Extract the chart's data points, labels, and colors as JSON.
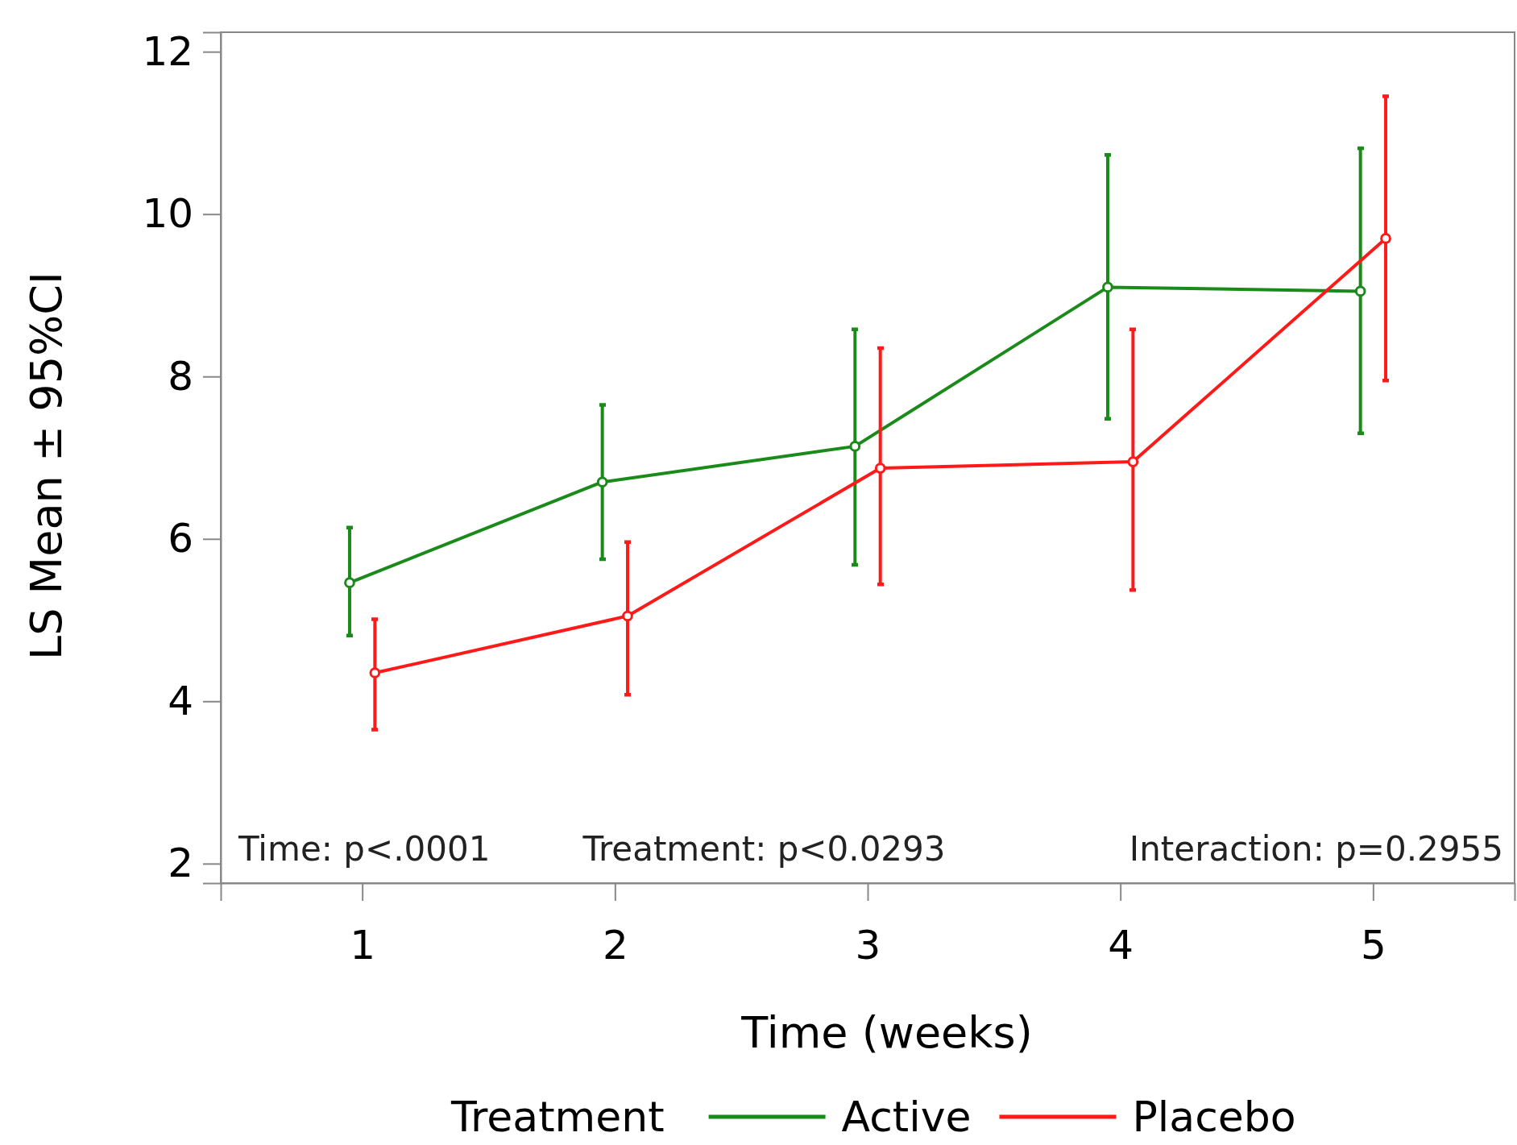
{
  "chart_data": {
    "type": "line",
    "xlabel": "Time (weeks)",
    "ylabel": "LS Mean ± 95%CI",
    "legend_title": "Treatment",
    "legend": "bottom",
    "marker": "circle",
    "line_style": "solid",
    "grid": false,
    "xlim": [
      0.44,
      5.56
    ],
    "xticks": [
      1,
      2,
      3,
      4,
      5
    ],
    "ylim": [
      1.76,
      12.24
    ],
    "yticks": [
      2,
      4,
      6,
      8,
      10,
      12
    ],
    "series": [
      {
        "name": "Active",
        "color": "#1a8a1a",
        "x": [
          0.95,
          1.95,
          2.95,
          3.95,
          4.95
        ],
        "values": [
          5.46,
          6.7,
          7.14,
          9.1,
          9.05
        ],
        "errors": [
          [
            4.81,
            6.14
          ],
          [
            5.75,
            7.65
          ],
          [
            5.68,
            8.58
          ],
          [
            7.48,
            10.73
          ],
          [
            7.3,
            10.81
          ]
        ]
      },
      {
        "name": "Placebo",
        "color": "#ff1a1a",
        "x": [
          1.05,
          2.05,
          3.05,
          4.05,
          5.05
        ],
        "values": [
          4.35,
          5.05,
          6.87,
          6.95,
          9.7
        ],
        "errors": [
          [
            3.65,
            5.01
          ],
          [
            4.08,
            5.96
          ],
          [
            5.44,
            8.35
          ],
          [
            5.37,
            8.58
          ],
          [
            7.95,
            11.45
          ]
        ]
      }
    ],
    "annotations": [
      "Time: p<.0001",
      "Treatment: p<0.0293",
      "Interaction: p=0.2955"
    ]
  }
}
